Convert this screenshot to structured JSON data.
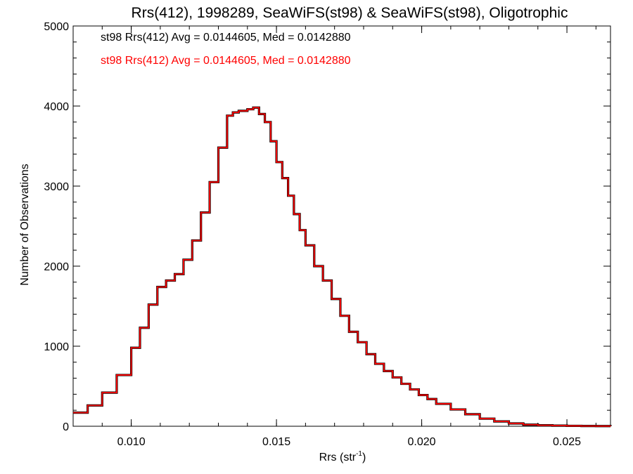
{
  "chart_data": {
    "type": "line",
    "title": "Rrs(412), 1998289, SeaWiFS(st98) & SeaWiFS(st98), Oligotrophic",
    "xlabel": "Rrs (str",
    "xlabel_sup": "-1",
    "xlabel_close": ")",
    "ylabel": "Number of Observations",
    "xlim": [
      0.008,
      0.0265
    ],
    "ylim": [
      0,
      5000
    ],
    "xticks": [
      0.01,
      0.015,
      0.02,
      0.025
    ],
    "xtick_labels": [
      "0.010",
      "0.015",
      "0.020",
      "0.025"
    ],
    "yticks": [
      0,
      1000,
      2000,
      3000,
      4000,
      5000
    ],
    "ytick_labels": [
      "0",
      "1000",
      "2000",
      "3000",
      "4000",
      "5000"
    ],
    "grid": false,
    "annotations": [
      {
        "text": "st98 Rrs(412) Avg = 0.0144605, Med = 0.0142880",
        "color": "#000000"
      },
      {
        "text": "st98 Rrs(412) Avg = 0.0144605, Med = 0.0142880",
        "color": "#ff0000"
      }
    ],
    "series": [
      {
        "color": "#ff0000",
        "step": true,
        "x": [
          0.008,
          0.0085,
          0.009,
          0.0095,
          0.01,
          0.0103,
          0.0106,
          0.0109,
          0.0112,
          0.0115,
          0.0118,
          0.0121,
          0.0124,
          0.0127,
          0.013,
          0.0133,
          0.0135,
          0.0137,
          0.014,
          0.0142,
          0.0144,
          0.0146,
          0.0148,
          0.015,
          0.0152,
          0.0154,
          0.0156,
          0.0158,
          0.016,
          0.0163,
          0.0166,
          0.0169,
          0.0172,
          0.0175,
          0.0178,
          0.0181,
          0.0184,
          0.0187,
          0.019,
          0.0193,
          0.0196,
          0.0199,
          0.0202,
          0.0205,
          0.021,
          0.0215,
          0.022,
          0.0225,
          0.023,
          0.0235,
          0.024,
          0.0245,
          0.025,
          0.0255,
          0.026,
          0.0265
        ],
        "y": [
          170,
          260,
          420,
          640,
          980,
          1230,
          1520,
          1740,
          1820,
          1900,
          2080,
          2320,
          2670,
          3050,
          3480,
          3880,
          3920,
          3940,
          3960,
          3980,
          3900,
          3800,
          3560,
          3300,
          3100,
          2880,
          2650,
          2450,
          2260,
          2000,
          1820,
          1590,
          1380,
          1180,
          1050,
          900,
          780,
          690,
          610,
          530,
          460,
          390,
          340,
          280,
          210,
          150,
          95,
          60,
          35,
          20,
          12,
          8,
          5,
          3,
          2,
          1
        ]
      }
    ]
  }
}
